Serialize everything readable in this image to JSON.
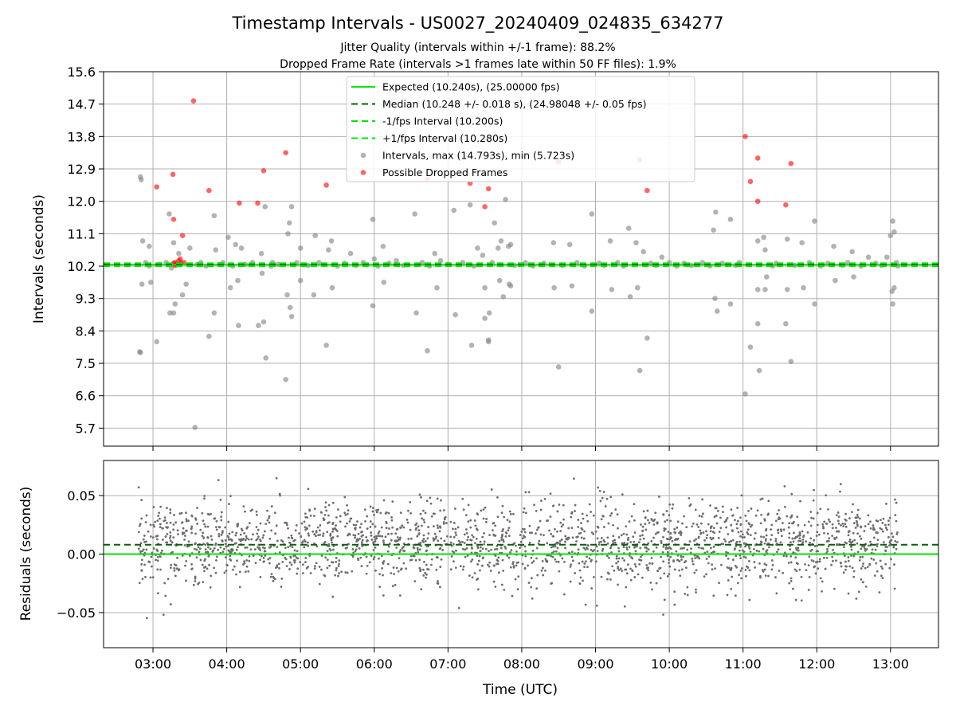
{
  "chart_data": [
    {
      "id": "intervals",
      "type": "scatter",
      "title": "Timestamp Intervals - US0027_20240409_024835_634277",
      "subtitle_lines": [
        "Jitter Quality (intervals within +/-1 frame): 88.2%",
        "Dropped Frame Rate (intervals >1 frames late within 50 FF files): 1.9%"
      ],
      "xlabel": "",
      "ylabel": "Intervals (seconds)",
      "xlim_hours": [
        2.33,
        13.65
      ],
      "ylim": [
        5.2,
        15.6
      ],
      "y_ticks": [
        5.7,
        6.6,
        7.5,
        8.4,
        9.3,
        10.2,
        11.1,
        12.0,
        12.9,
        13.8,
        14.7,
        15.6
      ],
      "y_tick_labels": [
        "5.7",
        "6.6",
        "7.5",
        "8.4",
        "9.3",
        "10.2",
        "11.1",
        "12.0",
        "12.9",
        "13.8",
        "14.7",
        "15.6"
      ],
      "grid": true,
      "legend_position": "top-center",
      "reference_lines": [
        {
          "name": "Expected (10.240s), (25.00000 fps)",
          "value": 10.24,
          "style": "solid",
          "color": "#00e600"
        },
        {
          "name": "Median (10.248 +/- 0.018 s), (24.98048 +/- 0.05 fps)",
          "value": 10.248,
          "style": "dashed",
          "color": "#006400"
        },
        {
          "name": "-1/fps Interval (10.200s)",
          "value": 10.2,
          "style": "dashed",
          "color": "#00e600"
        },
        {
          "name": "+1/fps Interval (10.280s)",
          "value": 10.28,
          "style": "dashed",
          "color": "#00e600"
        }
      ],
      "series": [
        {
          "name": "Intervals, max (14.793s), min (5.723s)",
          "color": "#808080",
          "points": [
            [
              2.83,
              12.68
            ],
            [
              2.84,
              12.6
            ],
            [
              2.82,
              7.82
            ],
            [
              2.83,
              7.8
            ],
            [
              2.86,
              10.9
            ],
            [
              2.85,
              9.7
            ],
            [
              2.95,
              10.75
            ],
            [
              2.97,
              9.75
            ],
            [
              3.05,
              8.1
            ],
            [
              3.22,
              11.65
            ],
            [
              3.23,
              8.9
            ],
            [
              3.28,
              8.9
            ],
            [
              3.3,
              9.15
            ],
            [
              3.35,
              10.55
            ],
            [
              3.4,
              9.4
            ],
            [
              3.45,
              9.7
            ],
            [
              3.28,
              10.85
            ],
            [
              3.5,
              10.7
            ],
            [
              3.57,
              5.72
            ],
            [
              3.76,
              8.25
            ],
            [
              3.83,
              11.6
            ],
            [
              3.85,
              10.65
            ],
            [
              3.83,
              8.9
            ],
            [
              4.02,
              11.0
            ],
            [
              4.05,
              9.6
            ],
            [
              4.12,
              10.8
            ],
            [
              4.15,
              9.8
            ],
            [
              4.16,
              8.55
            ],
            [
              4.2,
              10.7
            ],
            [
              4.43,
              8.55
            ],
            [
              4.47,
              10.55
            ],
            [
              4.48,
              10.0
            ],
            [
              4.5,
              8.65
            ],
            [
              4.52,
              11.85
            ],
            [
              4.53,
              7.65
            ],
            [
              4.62,
              10.3
            ],
            [
              4.8,
              7.05
            ],
            [
              4.82,
              9.4
            ],
            [
              4.83,
              11.1
            ],
            [
              4.85,
              11.4
            ],
            [
              4.86,
              9.05
            ],
            [
              4.88,
              11.85
            ],
            [
              4.88,
              8.8
            ],
            [
              5.0,
              10.7
            ],
            [
              5.0,
              9.8
            ],
            [
              5.18,
              9.4
            ],
            [
              5.2,
              11.05
            ],
            [
              5.35,
              8.0
            ],
            [
              5.38,
              10.65
            ],
            [
              5.42,
              10.9
            ],
            [
              5.43,
              9.6
            ],
            [
              5.68,
              10.55
            ],
            [
              5.98,
              11.5
            ],
            [
              5.98,
              9.1
            ],
            [
              6.0,
              10.4
            ],
            [
              6.12,
              10.75
            ],
            [
              6.13,
              9.75
            ],
            [
              6.55,
              11.65
            ],
            [
              6.57,
              8.9
            ],
            [
              6.72,
              7.85
            ],
            [
              6.82,
              10.55
            ],
            [
              6.85,
              9.6
            ],
            [
              7.08,
              11.75
            ],
            [
              7.1,
              8.85
            ],
            [
              7.3,
              11.9
            ],
            [
              7.32,
              8.0
            ],
            [
              7.4,
              10.7
            ],
            [
              7.47,
              10.5
            ],
            [
              7.5,
              9.6
            ],
            [
              7.5,
              8.75
            ],
            [
              7.55,
              8.15
            ],
            [
              7.55,
              8.1
            ],
            [
              7.56,
              8.9
            ],
            [
              7.63,
              11.4
            ],
            [
              7.68,
              10.7
            ],
            [
              7.7,
              9.8
            ],
            [
              7.72,
              10.9
            ],
            [
              7.75,
              9.35
            ],
            [
              7.78,
              12.05
            ],
            [
              7.82,
              10.75
            ],
            [
              7.83,
              9.7
            ],
            [
              7.85,
              10.8
            ],
            [
              7.85,
              9.65
            ],
            [
              8.43,
              10.85
            ],
            [
              8.44,
              9.6
            ],
            [
              8.5,
              7.4
            ],
            [
              8.65,
              10.8
            ],
            [
              8.68,
              9.65
            ],
            [
              8.95,
              11.65
            ],
            [
              8.95,
              8.95
            ],
            [
              9.2,
              10.9
            ],
            [
              9.22,
              9.55
            ],
            [
              9.45,
              11.25
            ],
            [
              9.47,
              9.35
            ],
            [
              9.55,
              10.85
            ],
            [
              9.57,
              9.6
            ],
            [
              9.6,
              7.3
            ],
            [
              9.65,
              10.6
            ],
            [
              9.7,
              8.2
            ],
            [
              9.9,
              10.45
            ],
            [
              10.6,
              11.2
            ],
            [
              10.62,
              9.3
            ],
            [
              10.63,
              11.7
            ],
            [
              10.65,
              8.95
            ],
            [
              10.83,
              11.5
            ],
            [
              10.83,
              9.15
            ],
            [
              11.03,
              6.65
            ],
            [
              11.1,
              7.95
            ],
            [
              11.2,
              10.9
            ],
            [
              11.2,
              8.6
            ],
            [
              11.22,
              7.3
            ],
            [
              11.2,
              9.55
            ],
            [
              11.28,
              11.0
            ],
            [
              11.3,
              10.65
            ],
            [
              11.32,
              9.9
            ],
            [
              11.3,
              9.55
            ],
            [
              11.6,
              10.95
            ],
            [
              11.6,
              9.55
            ],
            [
              11.58,
              8.6
            ],
            [
              11.65,
              7.55
            ],
            [
              11.8,
              10.85
            ],
            [
              11.82,
              9.6
            ],
            [
              11.97,
              11.45
            ],
            [
              11.97,
              9.15
            ],
            [
              12.23,
              10.75
            ],
            [
              12.25,
              9.8
            ],
            [
              12.48,
              10.6
            ],
            [
              12.5,
              9.9
            ],
            [
              12.7,
              10.45
            ],
            [
              12.95,
              10.45
            ],
            [
              13.0,
              11.05
            ],
            [
              13.02,
              9.5
            ],
            [
              13.03,
              11.45
            ],
            [
              13.05,
              11.15
            ],
            [
              13.03,
              9.15
            ],
            [
              13.05,
              9.6
            ],
            [
              2.9,
              10.3
            ],
            [
              2.95,
              10.2
            ],
            [
              3.1,
              10.25
            ],
            [
              3.18,
              10.3
            ],
            [
              3.25,
              10.15
            ],
            [
              3.6,
              10.25
            ],
            [
              3.65,
              10.3
            ],
            [
              3.72,
              10.2
            ],
            [
              3.9,
              10.25
            ],
            [
              3.95,
              10.3
            ],
            [
              4.08,
              10.2
            ],
            [
              4.25,
              10.25
            ],
            [
              4.35,
              10.3
            ],
            [
              4.6,
              10.2
            ],
            [
              4.7,
              10.25
            ],
            [
              4.95,
              10.3
            ],
            [
              5.1,
              10.22
            ],
            [
              5.25,
              10.3
            ],
            [
              5.5,
              10.2
            ],
            [
              5.6,
              10.28
            ],
            [
              5.75,
              10.22
            ],
            [
              5.85,
              10.3
            ],
            [
              6.05,
              10.2
            ],
            [
              6.2,
              10.28
            ],
            [
              6.3,
              10.35
            ],
            [
              6.4,
              10.22
            ],
            [
              6.65,
              10.3
            ],
            [
              6.75,
              10.2
            ],
            [
              6.9,
              10.35
            ],
            [
              7.0,
              10.25
            ],
            [
              7.2,
              10.3
            ],
            [
              7.35,
              10.2
            ],
            [
              7.6,
              10.3
            ],
            [
              7.9,
              10.22
            ],
            [
              8.05,
              10.3
            ],
            [
              8.15,
              10.2
            ],
            [
              8.3,
              10.28
            ],
            [
              8.55,
              10.22
            ],
            [
              8.75,
              10.3
            ],
            [
              8.85,
              10.2
            ],
            [
              9.05,
              10.28
            ],
            [
              9.12,
              10.22
            ],
            [
              9.3,
              10.3
            ],
            [
              9.38,
              10.2
            ],
            [
              9.75,
              10.28
            ],
            [
              9.82,
              10.22
            ],
            [
              10.0,
              10.3
            ],
            [
              10.1,
              10.2
            ],
            [
              10.2,
              10.28
            ],
            [
              10.3,
              10.22
            ],
            [
              10.45,
              10.3
            ],
            [
              10.55,
              10.2
            ],
            [
              10.72,
              10.28
            ],
            [
              10.9,
              10.22
            ],
            [
              10.95,
              10.3
            ],
            [
              11.4,
              10.2
            ],
            [
              11.45,
              10.28
            ],
            [
              11.7,
              10.22
            ],
            [
              11.9,
              10.3
            ],
            [
              12.05,
              10.2
            ],
            [
              12.15,
              10.28
            ],
            [
              12.35,
              10.22
            ],
            [
              12.42,
              10.3
            ],
            [
              12.6,
              10.2
            ],
            [
              12.8,
              10.28
            ],
            [
              12.88,
              10.22
            ],
            [
              13.08,
              10.3
            ],
            [
              13.1,
              10.2
            ]
          ]
        },
        {
          "name": "Possible Dropped Frames",
          "color": "#ff0000",
          "points": [
            [
              3.05,
              12.4
            ],
            [
              3.27,
              12.75
            ],
            [
              3.28,
              11.5
            ],
            [
              3.4,
              11.05
            ],
            [
              3.55,
              14.79
            ],
            [
              3.76,
              12.3
            ],
            [
              4.17,
              11.95
            ],
            [
              4.42,
              11.95
            ],
            [
              4.5,
              12.85
            ],
            [
              4.8,
              13.35
            ],
            [
              5.35,
              12.45
            ],
            [
              6.72,
              12.62
            ],
            [
              7.3,
              12.5
            ],
            [
              7.5,
              11.85
            ],
            [
              7.55,
              12.35
            ],
            [
              8.5,
              13.1
            ],
            [
              9.6,
              13.15
            ],
            [
              9.7,
              12.3
            ],
            [
              11.03,
              13.8
            ],
            [
              11.1,
              12.55
            ],
            [
              11.2,
              13.2
            ],
            [
              11.2,
              12.0
            ],
            [
              11.58,
              11.9
            ],
            [
              11.65,
              13.05
            ],
            [
              3.28,
              10.28
            ],
            [
              3.3,
              10.3
            ],
            [
              3.32,
              10.25
            ],
            [
              3.35,
              10.35
            ],
            [
              3.38,
              10.28
            ],
            [
              3.42,
              10.3
            ],
            [
              3.3,
              10.22
            ],
            [
              3.37,
              10.4
            ]
          ]
        }
      ]
    },
    {
      "id": "residuals",
      "type": "scatter",
      "xlabel": "Time (UTC)",
      "ylabel": "Residuals (seconds)",
      "xlim_hours": [
        2.33,
        13.65
      ],
      "ylim": [
        -0.08,
        0.08
      ],
      "y_ticks": [
        -0.05,
        0.0,
        0.05
      ],
      "y_tick_labels": [
        "−0.05",
        "0.00",
        "0.05"
      ],
      "x_ticks_hours": [
        3,
        4,
        5,
        6,
        7,
        8,
        9,
        10,
        11,
        12,
        13
      ],
      "x_tick_labels": [
        "03:00",
        "04:00",
        "05:00",
        "06:00",
        "07:00",
        "08:00",
        "09:00",
        "10:00",
        "11:00",
        "12:00",
        "13:00"
      ],
      "grid": true,
      "reference_lines": [
        {
          "name": "Expected",
          "value": 0.0,
          "style": "solid",
          "color": "#00e600"
        },
        {
          "name": "Median",
          "value": 0.008,
          "style": "dashed",
          "color": "#006400"
        }
      ],
      "residual_distribution": {
        "x_start": 2.8,
        "x_end": 13.1,
        "count": 2200,
        "mean": 0.008,
        "std": 0.018
      },
      "series": [
        {
          "name": "Residuals",
          "color": "#6e6e6e"
        }
      ]
    }
  ]
}
